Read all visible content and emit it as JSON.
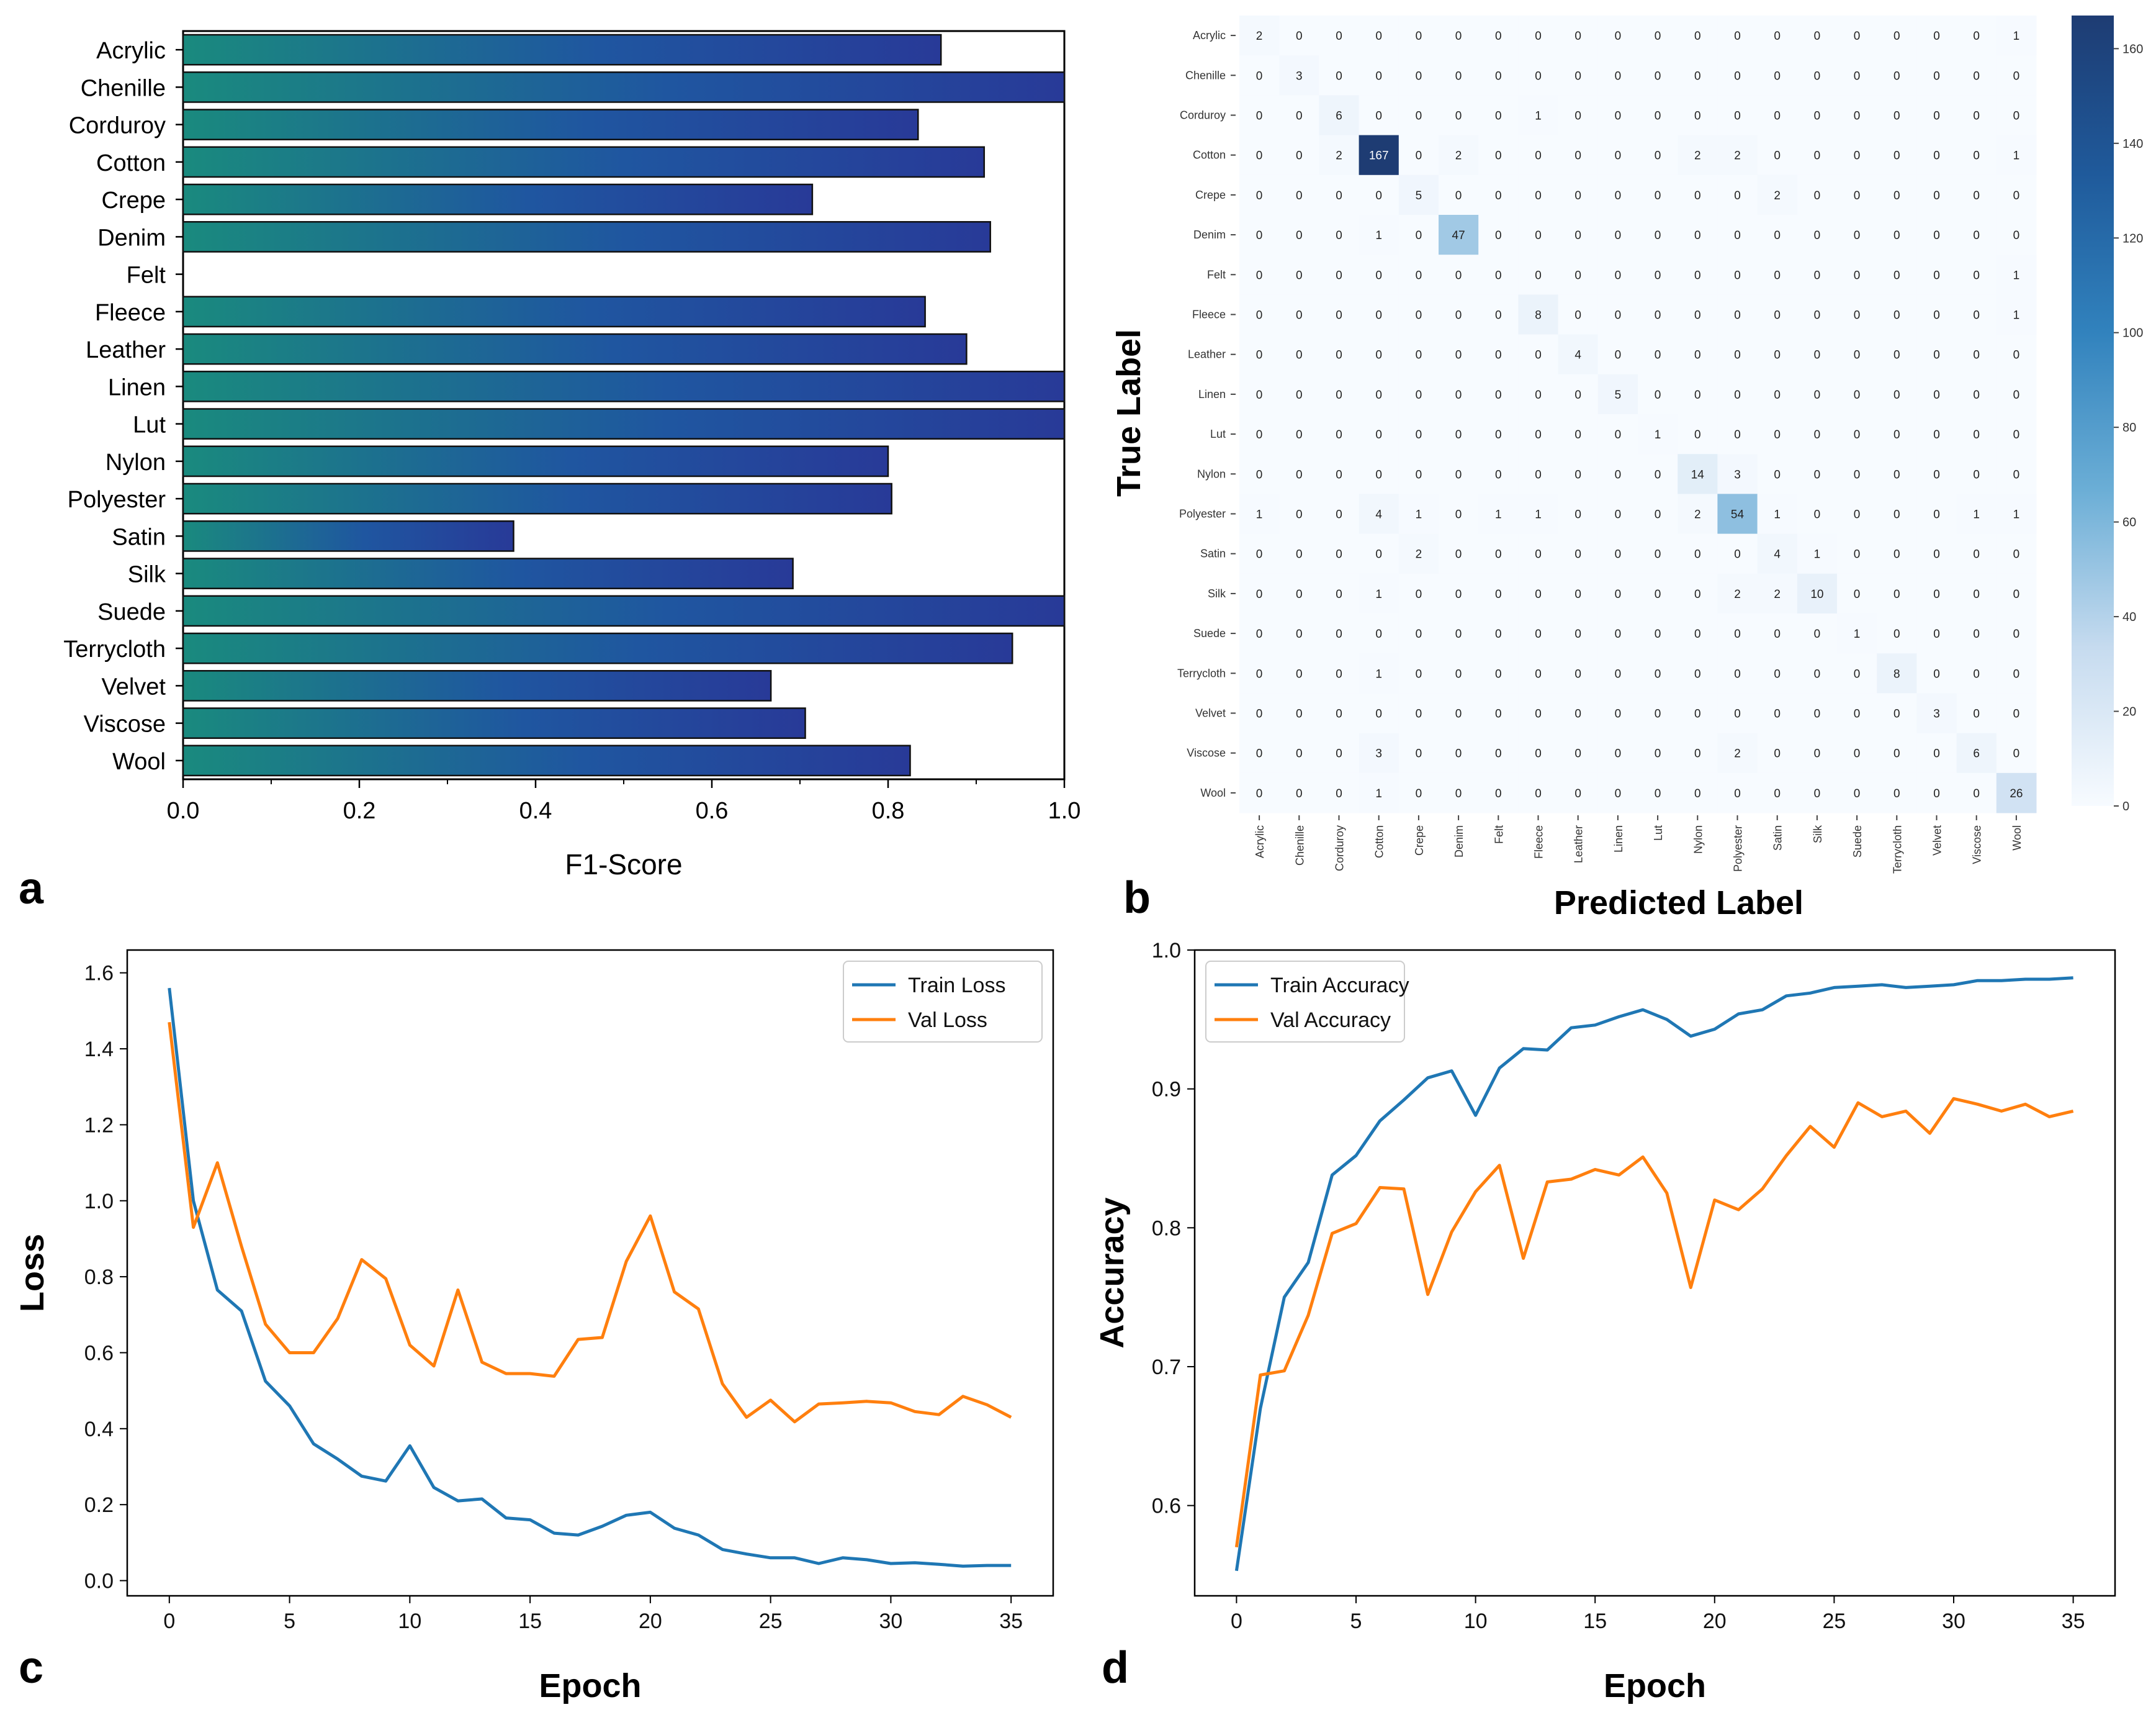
{
  "panel_labels": [
    "a",
    "b",
    "c",
    "d"
  ],
  "chart_data": [
    {
      "type": "bar",
      "orientation": "horizontal",
      "panel": "a",
      "categories": [
        "Acrylic",
        "Chenille",
        "Corduroy",
        "Cotton",
        "Crepe",
        "Denim",
        "Felt",
        "Fleece",
        "Leather",
        "Linen",
        "Lut",
        "Nylon",
        "Polyester",
        "Satin",
        "Silk",
        "Suede",
        "Terrycloth",
        "Velvet",
        "Viscose",
        "Wool"
      ],
      "values": [
        0.86,
        1.0,
        0.834,
        0.909,
        0.714,
        0.916,
        0.0,
        0.842,
        0.889,
        1.0,
        1.0,
        0.8,
        0.804,
        0.375,
        0.692,
        1.0,
        0.941,
        0.667,
        0.706,
        0.825
      ],
      "xlabel": "F1-Score",
      "ylabel": "",
      "xlim": [
        0,
        1.0
      ],
      "xticks": [
        "0.0",
        "0.2",
        "0.4",
        "0.6",
        "0.8",
        "1.0"
      ],
      "colors": {
        "gradient_start": "#1a8a7e",
        "gradient_mid": "#1f56a0",
        "gradient_end": "#283a98",
        "edge": "#111111"
      }
    },
    {
      "type": "heatmap",
      "panel": "b",
      "title": "",
      "xlabel": "Predicted Label",
      "ylabel": "True Label",
      "labels": [
        "Acrylic",
        "Chenille",
        "Corduroy",
        "Cotton",
        "Crepe",
        "Denim",
        "Felt",
        "Fleece",
        "Leather",
        "Linen",
        "Lut",
        "Nylon",
        "Polyester",
        "Satin",
        "Silk",
        "Suede",
        "Terrycloth",
        "Velvet",
        "Viscose",
        "Wool"
      ],
      "matrix": [
        [
          2,
          0,
          0,
          0,
          0,
          0,
          0,
          0,
          0,
          0,
          0,
          0,
          0,
          0,
          0,
          0,
          0,
          0,
          0,
          1
        ],
        [
          0,
          3,
          0,
          0,
          0,
          0,
          0,
          0,
          0,
          0,
          0,
          0,
          0,
          0,
          0,
          0,
          0,
          0,
          0,
          0
        ],
        [
          0,
          0,
          6,
          0,
          0,
          0,
          0,
          1,
          0,
          0,
          0,
          0,
          0,
          0,
          0,
          0,
          0,
          0,
          0,
          0
        ],
        [
          0,
          0,
          2,
          167,
          0,
          2,
          0,
          0,
          0,
          0,
          0,
          2,
          2,
          0,
          0,
          0,
          0,
          0,
          0,
          1
        ],
        [
          0,
          0,
          0,
          0,
          5,
          0,
          0,
          0,
          0,
          0,
          0,
          0,
          0,
          2,
          0,
          0,
          0,
          0,
          0,
          0
        ],
        [
          0,
          0,
          0,
          1,
          0,
          47,
          0,
          0,
          0,
          0,
          0,
          0,
          0,
          0,
          0,
          0,
          0,
          0,
          0,
          0
        ],
        [
          0,
          0,
          0,
          0,
          0,
          0,
          0,
          0,
          0,
          0,
          0,
          0,
          0,
          0,
          0,
          0,
          0,
          0,
          0,
          1
        ],
        [
          0,
          0,
          0,
          0,
          0,
          0,
          0,
          8,
          0,
          0,
          0,
          0,
          0,
          0,
          0,
          0,
          0,
          0,
          0,
          1
        ],
        [
          0,
          0,
          0,
          0,
          0,
          0,
          0,
          0,
          4,
          0,
          0,
          0,
          0,
          0,
          0,
          0,
          0,
          0,
          0,
          0
        ],
        [
          0,
          0,
          0,
          0,
          0,
          0,
          0,
          0,
          0,
          5,
          0,
          0,
          0,
          0,
          0,
          0,
          0,
          0,
          0,
          0
        ],
        [
          0,
          0,
          0,
          0,
          0,
          0,
          0,
          0,
          0,
          0,
          1,
          0,
          0,
          0,
          0,
          0,
          0,
          0,
          0,
          0
        ],
        [
          0,
          0,
          0,
          0,
          0,
          0,
          0,
          0,
          0,
          0,
          0,
          14,
          3,
          0,
          0,
          0,
          0,
          0,
          0,
          0
        ],
        [
          1,
          0,
          0,
          4,
          1,
          0,
          1,
          1,
          0,
          0,
          0,
          2,
          54,
          1,
          0,
          0,
          0,
          0,
          1,
          1
        ],
        [
          0,
          0,
          0,
          0,
          2,
          0,
          0,
          0,
          0,
          0,
          0,
          0,
          0,
          4,
          1,
          0,
          0,
          0,
          0,
          0
        ],
        [
          0,
          0,
          0,
          1,
          0,
          0,
          0,
          0,
          0,
          0,
          0,
          0,
          2,
          2,
          10,
          0,
          0,
          0,
          0,
          0
        ],
        [
          0,
          0,
          0,
          0,
          0,
          0,
          0,
          0,
          0,
          0,
          0,
          0,
          0,
          0,
          0,
          1,
          0,
          0,
          0,
          0
        ],
        [
          0,
          0,
          0,
          1,
          0,
          0,
          0,
          0,
          0,
          0,
          0,
          0,
          0,
          0,
          0,
          0,
          8,
          0,
          0,
          0
        ],
        [
          0,
          0,
          0,
          0,
          0,
          0,
          0,
          0,
          0,
          0,
          0,
          0,
          0,
          0,
          0,
          0,
          0,
          3,
          0,
          0
        ],
        [
          0,
          0,
          0,
          3,
          0,
          0,
          0,
          0,
          0,
          0,
          0,
          0,
          2,
          0,
          0,
          0,
          0,
          0,
          6,
          0
        ],
        [
          0,
          0,
          0,
          1,
          0,
          0,
          0,
          0,
          0,
          0,
          0,
          0,
          0,
          0,
          0,
          0,
          0,
          0,
          0,
          26
        ]
      ],
      "colorbar_range": [
        0,
        167
      ],
      "colorbar_ticks": [
        "0",
        "20",
        "40",
        "60",
        "80",
        "100",
        "120",
        "140",
        "160"
      ],
      "colors": {
        "low": "#f7fbff",
        "mid": "#6baed6",
        "high": "#1e3c73"
      }
    },
    {
      "type": "line",
      "panel": "c",
      "xlabel": "Epoch",
      "ylabel": "Loss",
      "xlim": [
        0,
        35
      ],
      "ylim": [
        -0.04,
        1.66
      ],
      "xticks": [
        "0",
        "5",
        "10",
        "15",
        "20",
        "25",
        "30",
        "35"
      ],
      "yticks": [
        "0.0",
        "0.2",
        "0.4",
        "0.6",
        "0.8",
        "1.0",
        "1.2",
        "1.4",
        "1.6"
      ],
      "x": [
        0,
        1,
        2,
        3,
        4,
        5,
        6,
        7,
        8,
        9,
        10,
        11,
        12,
        13,
        14,
        15,
        16,
        17,
        18,
        19,
        20,
        21,
        22,
        23,
        24,
        25,
        26,
        27,
        28,
        29,
        30,
        31,
        32,
        33,
        34,
        35
      ],
      "series": [
        {
          "name": "Train Loss",
          "color": "#1f77b4",
          "values": [
            1.56,
            1.0,
            0.765,
            0.71,
            0.525,
            0.46,
            0.36,
            0.32,
            0.275,
            0.262,
            0.355,
            0.245,
            0.21,
            0.215,
            0.165,
            0.16,
            0.125,
            0.12,
            0.143,
            0.172,
            0.18,
            0.138,
            0.12,
            0.082,
            0.07,
            0.06,
            0.06,
            0.045,
            0.06,
            0.055,
            0.045,
            0.047,
            0.043,
            0.038,
            0.04,
            0.04
          ]
        },
        {
          "name": "Val Loss",
          "color": "#ff7f0e",
          "values": [
            1.47,
            0.93,
            1.1,
            0.88,
            0.675,
            0.6,
            0.6,
            0.69,
            0.845,
            0.795,
            0.62,
            0.565,
            0.765,
            0.575,
            0.545,
            0.545,
            0.538,
            0.635,
            0.64,
            0.84,
            0.96,
            0.76,
            0.715,
            0.518,
            0.43,
            0.475,
            0.418,
            0.465,
            0.468,
            0.472,
            0.468,
            0.445,
            0.437,
            0.485,
            0.463,
            0.43
          ]
        }
      ],
      "legend": "top-right"
    },
    {
      "type": "line",
      "panel": "d",
      "xlabel": "Epoch",
      "ylabel": "Accuracy",
      "xlim": [
        0,
        35
      ],
      "ylim": [
        0.535,
        1.0
      ],
      "xticks": [
        "0",
        "5",
        "10",
        "15",
        "20",
        "25",
        "30",
        "35"
      ],
      "yticks": [
        "0.6",
        "0.7",
        "0.8",
        "0.9",
        "1.0"
      ],
      "x": [
        0,
        1,
        2,
        3,
        4,
        5,
        6,
        7,
        8,
        9,
        10,
        11,
        12,
        13,
        14,
        15,
        16,
        17,
        18,
        19,
        20,
        21,
        22,
        23,
        24,
        25,
        26,
        27,
        28,
        29,
        30,
        31,
        32,
        33,
        34,
        35
      ],
      "series": [
        {
          "name": "Train Accuracy",
          "color": "#1f77b4",
          "values": [
            0.553,
            0.67,
            0.75,
            0.775,
            0.838,
            0.852,
            0.877,
            0.892,
            0.908,
            0.913,
            0.881,
            0.915,
            0.929,
            0.928,
            0.944,
            0.946,
            0.952,
            0.957,
            0.95,
            0.938,
            0.943,
            0.954,
            0.957,
            0.967,
            0.969,
            0.973,
            0.974,
            0.975,
            0.973,
            0.974,
            0.975,
            0.978,
            0.978,
            0.979,
            0.979,
            0.98
          ]
        },
        {
          "name": "Val Accuracy",
          "color": "#ff7f0e",
          "values": [
            0.57,
            0.694,
            0.697,
            0.737,
            0.796,
            0.803,
            0.829,
            0.828,
            0.752,
            0.797,
            0.826,
            0.845,
            0.778,
            0.833,
            0.835,
            0.842,
            0.838,
            0.851,
            0.825,
            0.757,
            0.82,
            0.813,
            0.828,
            0.852,
            0.873,
            0.858,
            0.89,
            0.88,
            0.884,
            0.868,
            0.893,
            0.889,
            0.884,
            0.889,
            0.88,
            0.884
          ]
        }
      ],
      "legend": "top-left"
    }
  ]
}
